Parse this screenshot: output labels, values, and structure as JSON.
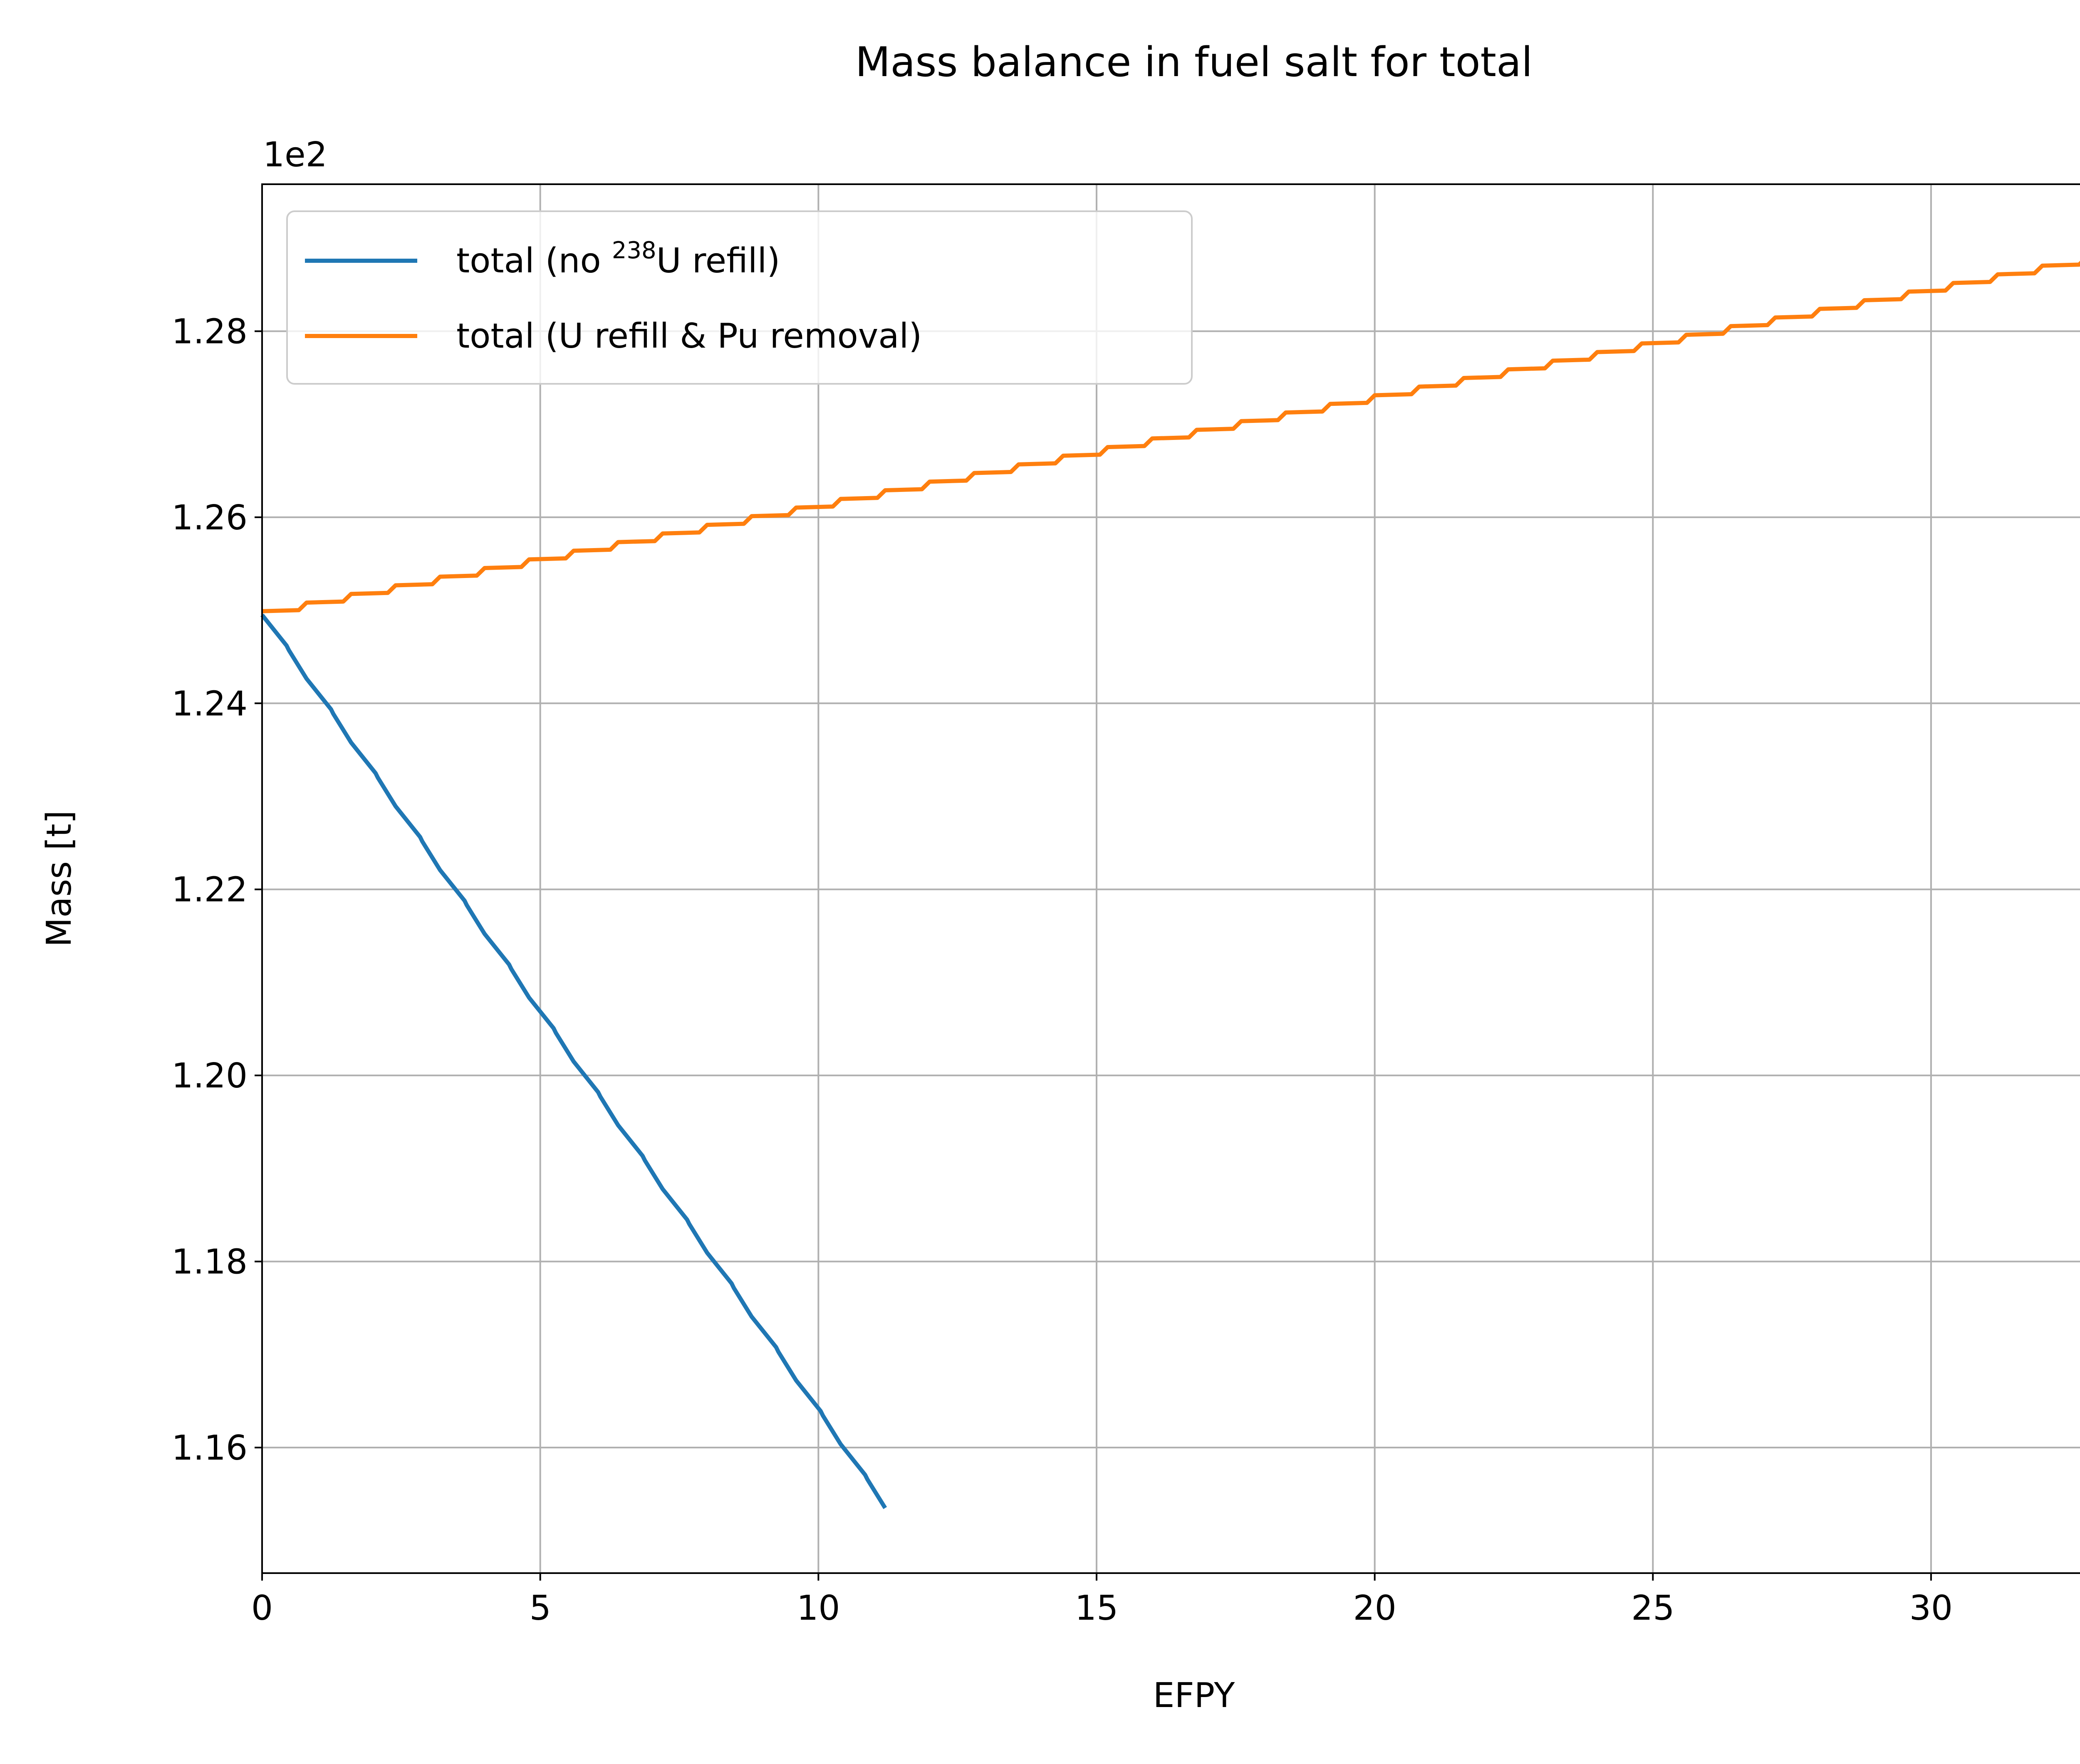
{
  "chart_data": {
    "type": "line",
    "title": "Mass balance in fuel salt for total",
    "xlabel": "EFPY",
    "ylabel": "Mass [t]",
    "y_offset_label": "1e2",
    "xlim": [
      0,
      33.5
    ],
    "ylim": [
      1.1465,
      1.2958
    ],
    "x_ticks": [
      0,
      5,
      10,
      15,
      20,
      25,
      30
    ],
    "x_tick_labels": [
      "0",
      "5",
      "10",
      "15",
      "20",
      "25",
      "30"
    ],
    "y_ticks": [
      1.16,
      1.18,
      1.2,
      1.22,
      1.24,
      1.26,
      1.28
    ],
    "y_tick_labels": [
      "1.16",
      "1.18",
      "1.20",
      "1.22",
      "1.24",
      "1.26",
      "1.28"
    ],
    "grid": true,
    "legend_position": "upper-left",
    "step_interval": 0.8,
    "series": [
      {
        "name": "total (no ²³⁸U refill)",
        "legend": {
          "prefix": "total (no ",
          "superscript": "238",
          "suffix": "U refill)"
        },
        "color": "#1f77b4",
        "style": "sawtooth-decreasing",
        "x": [
          0,
          11.2
        ],
        "y": [
          1.2495,
          1.1535
        ]
      },
      {
        "name": "total (U refill & Pu removal)",
        "legend": {
          "prefix": "total (U refill & Pu removal)",
          "superscript": "",
          "suffix": ""
        },
        "color": "#ff7f0e",
        "style": "staircase-increasing",
        "x": [
          0,
          33.5
        ],
        "y": [
          1.2499,
          1.2889
        ]
      }
    ]
  }
}
